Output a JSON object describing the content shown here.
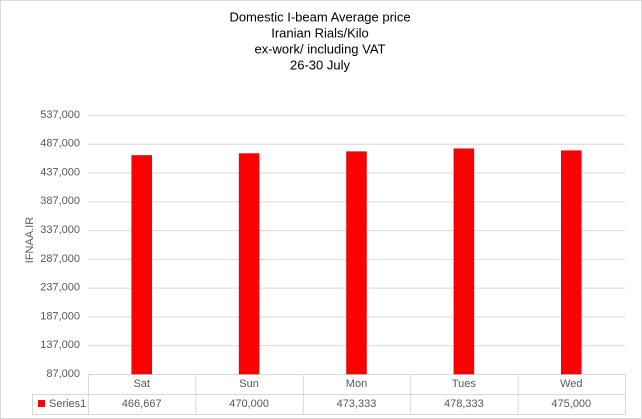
{
  "chart_data": {
    "type": "bar",
    "title": "Domestic I-beam Average price",
    "subtitle": [
      "Iranian Rials/Kilo",
      "ex-work/ including VAT",
      "26-30 July"
    ],
    "y_label": "IFNAA.IR",
    "categories": [
      "Sat",
      "Sun",
      "Mon",
      "Tues",
      "Wed"
    ],
    "series": [
      {
        "name": "Series1",
        "color": "#ff0000",
        "values": [
          466667,
          470000,
          473333,
          478333,
          475000
        ],
        "value_labels": [
          "466,667",
          "470,000",
          "473,333",
          "478,333",
          "475,000"
        ]
      }
    ],
    "ylim": [
      87000,
      537000
    ],
    "yticks": [
      {
        "value": 87000,
        "label": "87,000"
      },
      {
        "value": 137000,
        "label": "137,000"
      },
      {
        "value": 187000,
        "label": "187,000"
      },
      {
        "value": 237000,
        "label": "237,000"
      },
      {
        "value": 287000,
        "label": "287,000"
      },
      {
        "value": 337000,
        "label": "337,000"
      },
      {
        "value": 387000,
        "label": "387,000"
      },
      {
        "value": 437000,
        "label": "437,000"
      },
      {
        "value": 487000,
        "label": "487,000"
      },
      {
        "value": 537000,
        "label": "537,000"
      }
    ],
    "grid": true,
    "data_table": true
  }
}
